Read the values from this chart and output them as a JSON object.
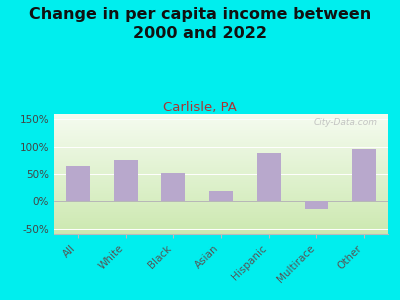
{
  "categories": [
    "All",
    "White",
    "Black",
    "Asian",
    "Hispanic",
    "Multirace",
    "Other"
  ],
  "values": [
    65,
    75,
    52,
    18,
    88,
    -15,
    95
  ],
  "bar_color": "#b8a8cc",
  "title": "Change in per capita income between\n2000 and 2022",
  "subtitle": "Carlisle, PA",
  "subtitle_color": "#aa3333",
  "title_color": "#111111",
  "background_color": "#00eeee",
  "plot_bg_color_top": "#cce8b0",
  "plot_bg_color_bottom": "#f0f8e8",
  "ylim": [
    -60,
    160
  ],
  "yticks": [
    -50,
    0,
    50,
    100,
    150
  ],
  "ytick_labels": [
    "-50%",
    "0%",
    "50%",
    "100%",
    "150%"
  ],
  "watermark": "City-Data.com",
  "bar_width": 0.5,
  "title_fontsize": 11.5,
  "subtitle_fontsize": 9.5,
  "tick_fontsize": 7.5
}
